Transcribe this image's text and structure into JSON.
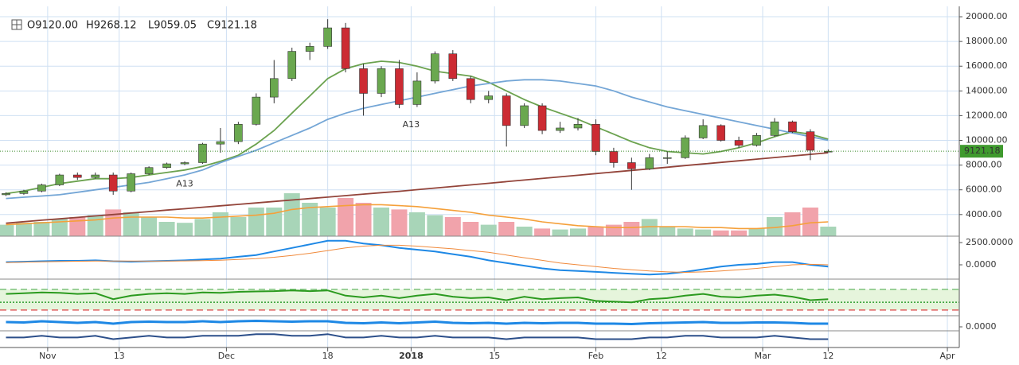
{
  "chart_data": {
    "type": "candlestick",
    "header": [
      "O9120.00",
      "H9268.12",
      "L9059.05",
      "C9121.18"
    ],
    "last_price": 9121.18,
    "last_price_label": "9121.18",
    "x": [
      "2017-10-25",
      "2017-10-28",
      "2017-10-31",
      "2017-11-03",
      "2017-11-06",
      "2017-11-09",
      "2017-11-12",
      "2017-11-15",
      "2017-11-18",
      "2017-11-21",
      "2017-11-24",
      "2017-11-27",
      "2017-11-30",
      "2017-12-03",
      "2017-12-06",
      "2017-12-09",
      "2017-12-12",
      "2017-12-15",
      "2017-12-18",
      "2017-12-21",
      "2017-12-24",
      "2017-12-27",
      "2017-12-30",
      "2018-01-02",
      "2018-01-05",
      "2018-01-08",
      "2018-01-11",
      "2018-01-14",
      "2018-01-17",
      "2018-01-20",
      "2018-01-23",
      "2018-01-26",
      "2018-01-29",
      "2018-02-01",
      "2018-02-04",
      "2018-02-07",
      "2018-02-10",
      "2018-02-13",
      "2018-02-16",
      "2018-02-19",
      "2018-02-22",
      "2018-02-25",
      "2018-02-28",
      "2018-03-03",
      "2018-03-06",
      "2018-03-09",
      "2018-03-12"
    ],
    "open": [
      5600,
      5700,
      5900,
      6400,
      7200,
      7000,
      7200,
      5900,
      7300,
      7800,
      8100,
      8200,
      9700,
      9900,
      11300,
      13500,
      15000,
      17200,
      17600,
      19100,
      15800,
      13800,
      15800,
      12900,
      14800,
      17000,
      15000,
      13300,
      13600,
      11200,
      12800,
      10800,
      11000,
      11300,
      9100,
      8200,
      7700,
      8600,
      8600,
      10200,
      11200,
      10000,
      9600,
      10400,
      11500,
      10700,
      9120
    ],
    "high": [
      5800,
      6000,
      6500,
      7300,
      7400,
      7400,
      7400,
      7400,
      7900,
      8200,
      8300,
      9800,
      11000,
      11500,
      13800,
      16500,
      17500,
      17900,
      19800,
      19500,
      16200,
      16000,
      16500,
      15500,
      17200,
      17300,
      15200,
      14000,
      13800,
      13000,
      13000,
      11500,
      11800,
      11700,
      9400,
      8600,
      8900,
      9100,
      10400,
      11700,
      11300,
      10300,
      10600,
      11800,
      11600,
      10900,
      9268.12
    ],
    "low": [
      5500,
      5600,
      5800,
      6300,
      6800,
      6900,
      5600,
      5800,
      7200,
      7700,
      8000,
      8100,
      9000,
      9700,
      11200,
      13000,
      14800,
      16500,
      17400,
      15500,
      12000,
      13500,
      12600,
      12700,
      14600,
      14800,
      13000,
      13000,
      9500,
      11000,
      10500,
      10600,
      10800,
      8800,
      7800,
      6000,
      7600,
      8100,
      8500,
      10100,
      9900,
      9400,
      9500,
      10300,
      10600,
      8400,
      9059.05
    ],
    "close": [
      5700,
      5900,
      6400,
      7200,
      7000,
      7200,
      5900,
      7300,
      7800,
      8100,
      8200,
      9700,
      9900,
      11300,
      13500,
      15000,
      17200,
      17600,
      19100,
      15800,
      13800,
      15800,
      12900,
      14800,
      17000,
      15000,
      13300,
      13600,
      11200,
      12800,
      10800,
      11000,
      11300,
      9100,
      8200,
      7700,
      8600,
      8600,
      10200,
      11200,
      10000,
      9600,
      10400,
      11500,
      10700,
      9200,
      9121.18
    ],
    "up_color": "#6aa84f",
    "down_color": "#cc2b33",
    "xlim": [
      "2017-10-24",
      "2018-04-03"
    ],
    "xticks": [
      {
        "value": "2017-11-01",
        "label": "Nov"
      },
      {
        "value": "2017-11-13",
        "label": "13"
      },
      {
        "value": "2017-12-01",
        "label": "Dec"
      },
      {
        "value": "2017-12-18",
        "label": "18"
      },
      {
        "value": "2018-01-01",
        "label": "2018"
      },
      {
        "value": "2018-01-15",
        "label": "15"
      },
      {
        "value": "2018-02-01",
        "label": "Feb"
      },
      {
        "value": "2018-02-12",
        "label": "12"
      },
      {
        "value": "2018-03-01",
        "label": "Mar"
      },
      {
        "value": "2018-03-12",
        "label": "12"
      },
      {
        "value": "2018-04-01",
        "label": "Apr"
      }
    ],
    "ylim": [
      2250,
      20840
    ],
    "yticks": [
      {
        "value": 4000,
        "label": "4000.00"
      },
      {
        "value": 6000,
        "label": "6000.00"
      },
      {
        "value": 8000,
        "label": "8000.00"
      },
      {
        "value": 10000,
        "label": "10000.00"
      },
      {
        "value": 12000,
        "label": "12000.00"
      },
      {
        "value": 14000,
        "label": "14000.00"
      },
      {
        "value": 16000,
        "label": "16000.00"
      },
      {
        "value": 18000,
        "label": "18000.00"
      },
      {
        "value": 20000,
        "label": "20000.00"
      }
    ],
    "grid": true,
    "series": [
      {
        "color": "#6ba24f",
        "values": [
          5700,
          5900,
          6200,
          6500,
          6700,
          6900,
          6900,
          7000,
          7200,
          7400,
          7600,
          7900,
          8300,
          8800,
          9700,
          10800,
          12200,
          13600,
          15000,
          15800,
          16200,
          16400,
          16300,
          16000,
          15600,
          15400,
          15200,
          14700,
          14000,
          13300,
          12700,
          12200,
          11700,
          11100,
          10500,
          9900,
          9400,
          9100,
          9000,
          8900,
          9100,
          9400,
          9800,
          10300,
          10700,
          10500,
          10100
        ]
      },
      {
        "color": "#74a6d6",
        "values": [
          5300,
          5400,
          5500,
          5600,
          5800,
          6000,
          6200,
          6400,
          6600,
          6900,
          7200,
          7600,
          8200,
          8700,
          9200,
          9800,
          10400,
          11000,
          11700,
          12200,
          12600,
          12900,
          13200,
          13500,
          13800,
          14100,
          14400,
          14600,
          14800,
          14900,
          14900,
          14800,
          14600,
          14400,
          14000,
          13500,
          13100,
          12700,
          12400,
          12100,
          11800,
          11500,
          11200,
          10900,
          10600,
          10300,
          10000
        ]
      },
      {
        "color": "#93443a",
        "values": [
          3300,
          3420,
          3540,
          3650,
          3770,
          3890,
          4000,
          4120,
          4240,
          4360,
          4470,
          4590,
          4710,
          4820,
          4940,
          5060,
          5180,
          5290,
          5410,
          5530,
          5650,
          5770,
          5880,
          6010,
          6140,
          6270,
          6400,
          6530,
          6660,
          6790,
          6920,
          7050,
          7180,
          7310,
          7440,
          7570,
          7700,
          7830,
          7960,
          8090,
          8220,
          8350,
          8480,
          8610,
          8740,
          8870,
          9000
        ]
      }
    ],
    "annotations": [
      {
        "text": "A13",
        "x": "2017-11-24",
        "y": 6460
      },
      {
        "text": "A13",
        "x": "2018-01-01",
        "y": 11250
      }
    ],
    "volume": {
      "ylim": [
        0,
        100
      ],
      "values": [
        12,
        14,
        15,
        18,
        20,
        22,
        28,
        25,
        20,
        15,
        14,
        18,
        25,
        20,
        30,
        30,
        45,
        35,
        30,
        40,
        35,
        30,
        28,
        25,
        22,
        20,
        15,
        12,
        15,
        10,
        8,
        7,
        8,
        10,
        12,
        15,
        18,
        10,
        8,
        7,
        6,
        6,
        8,
        20,
        25,
        30,
        10
      ],
      "average": {
        "color": "#f5a03a",
        "values": [
          12,
          13,
          14,
          15,
          16,
          17,
          19,
          20,
          20,
          20,
          19,
          19,
          20,
          21,
          22,
          24,
          28,
          30,
          31,
          32,
          33,
          33,
          32,
          31,
          29,
          27,
          25,
          22,
          20,
          18,
          15,
          13,
          11,
          10,
          9,
          9,
          10,
          10,
          10,
          9,
          9,
          8,
          8,
          9,
          11,
          14,
          15
        ]
      }
    },
    "macd": {
      "ylim": [
        -1520,
        3040
      ],
      "yticks": [
        {
          "value": 0,
          "label": "0.0000"
        },
        {
          "value": 2500,
          "label": "2500.0000"
        }
      ],
      "series": [
        {
          "color": "#1e88e5",
          "values": [
            300,
            350,
            400,
            450,
            450,
            500,
            400,
            350,
            400,
            450,
            500,
            600,
            700,
            900,
            1100,
            1500,
            1900,
            2300,
            2700,
            2700,
            2400,
            2200,
            1900,
            1700,
            1500,
            1200,
            900,
            500,
            200,
            -100,
            -400,
            -600,
            -700,
            -800,
            -900,
            -1000,
            -1100,
            -1000,
            -800,
            -500,
            -200,
            0,
            100,
            300,
            300,
            0,
            -200
          ]
        },
        {
          "color": "#f08a3c",
          "values": [
            250,
            300,
            330,
            370,
            400,
            430,
            430,
            420,
            410,
            420,
            440,
            470,
            520,
            600,
            700,
            850,
            1050,
            1300,
            1600,
            1900,
            2100,
            2200,
            2200,
            2100,
            1950,
            1800,
            1600,
            1400,
            1100,
            800,
            500,
            200,
            0,
            -200,
            -400,
            -550,
            -700,
            -800,
            -850,
            -800,
            -700,
            -550,
            -400,
            -200,
            0,
            50,
            0
          ]
        }
      ]
    },
    "oscillator": {
      "ylim": [
        0,
        100
      ],
      "levels": [
        {
          "value": 73,
          "color": "#7cc27c"
        },
        {
          "value": 36,
          "color": "#2e9e2e"
        },
        {
          "value": 14,
          "color": "#e06060"
        }
      ],
      "band_color": "#e6f5dc",
      "series": [
        {
          "color": "#2b9a1f",
          "values": [
            60,
            62,
            64,
            63,
            60,
            62,
            45,
            55,
            60,
            62,
            60,
            64,
            63,
            66,
            67,
            68,
            70,
            68,
            70,
            55,
            50,
            55,
            48,
            55,
            60,
            52,
            48,
            50,
            42,
            52,
            45,
            48,
            50,
            40,
            38,
            36,
            45,
            48,
            55,
            60,
            52,
            50,
            55,
            58,
            52,
            42,
            45
          ]
        }
      ]
    },
    "pane4": {
      "ylim": [
        -0.5,
        1.4
      ],
      "yticks": [
        {
          "value": 0,
          "label": "0.0000"
        }
      ],
      "series": [
        {
          "color": "#1e88e5",
          "values": [
            0.6,
            0.55,
            0.7,
            0.6,
            0.5,
            0.6,
            0.4,
            0.6,
            0.65,
            0.6,
            0.6,
            0.7,
            0.6,
            0.7,
            0.75,
            0.7,
            0.65,
            0.7,
            0.7,
            0.5,
            0.45,
            0.55,
            0.45,
            0.55,
            0.65,
            0.5,
            0.45,
            0.5,
            0.4,
            0.5,
            0.45,
            0.5,
            0.5,
            0.4,
            0.4,
            0.35,
            0.45,
            0.5,
            0.55,
            0.6,
            0.5,
            0.5,
            0.55,
            0.55,
            0.5,
            0.4,
            0.4
          ]
        }
      ]
    },
    "pane5": {
      "ylim": [
        0,
        10
      ],
      "series": [
        {
          "color": "#2c4f8a",
          "values": [
            6,
            6,
            7,
            6,
            6,
            7,
            5,
            6,
            7,
            6,
            6,
            7,
            7,
            7,
            8,
            8,
            7,
            7,
            8,
            6,
            6,
            7,
            6,
            6,
            7,
            6,
            6,
            6,
            5,
            6,
            6,
            6,
            6,
            5,
            5,
            5,
            6,
            6,
            7,
            7,
            6,
            6,
            6,
            7,
            6,
            5,
            5
          ]
        }
      ]
    }
  }
}
